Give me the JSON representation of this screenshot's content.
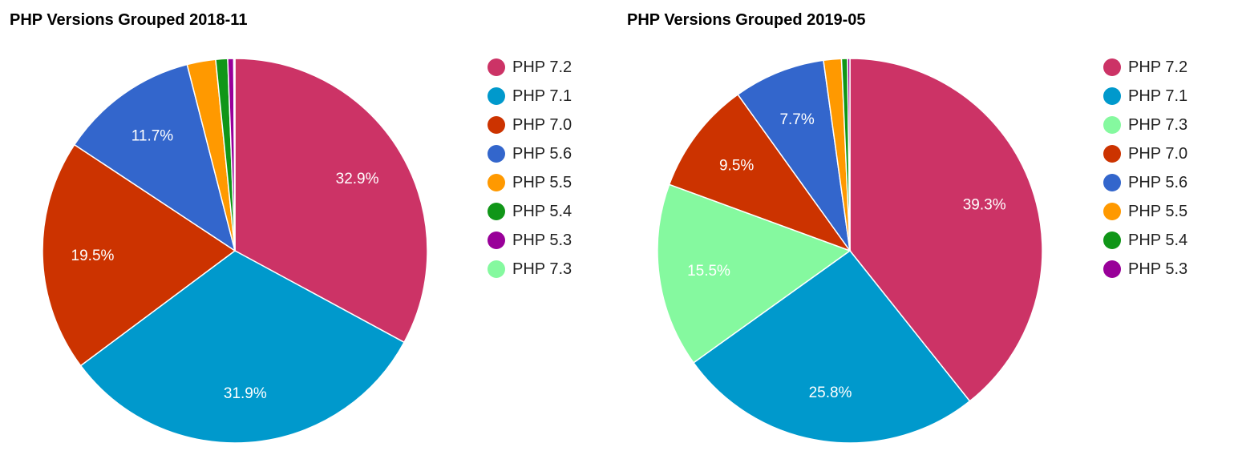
{
  "chart_data": [
    {
      "type": "pie",
      "title": "PHP Versions Grouped 2018-11",
      "legend_position": "right",
      "slices": [
        {
          "name": "PHP 7.2",
          "value": 32.9,
          "color": "#cc3366",
          "label": "32.9%"
        },
        {
          "name": "PHP 7.1",
          "value": 31.9,
          "color": "#0099cc",
          "label": "31.9%"
        },
        {
          "name": "PHP 7.0",
          "value": 19.5,
          "color": "#cc3300",
          "label": "19.5%"
        },
        {
          "name": "PHP 5.6",
          "value": 11.7,
          "color": "#3366cc",
          "label": "11.7%"
        },
        {
          "name": "PHP 5.5",
          "value": 2.4,
          "color": "#ff9900",
          "label": ""
        },
        {
          "name": "PHP 5.4",
          "value": 1.0,
          "color": "#109618",
          "label": ""
        },
        {
          "name": "PHP 5.3",
          "value": 0.5,
          "color": "#990099",
          "label": ""
        },
        {
          "name": "PHP 7.3",
          "value": 0.1,
          "color": "#85f99f",
          "label": ""
        }
      ],
      "legend": [
        "PHP 7.2",
        "PHP 7.1",
        "PHP 7.0",
        "PHP 5.6",
        "PHP 5.5",
        "PHP 5.4",
        "PHP 5.3",
        "PHP 7.3"
      ]
    },
    {
      "type": "pie",
      "title": "PHP Versions Grouped 2019-05",
      "legend_position": "right",
      "slices": [
        {
          "name": "PHP 7.2",
          "value": 39.3,
          "color": "#cc3366",
          "label": "39.3%"
        },
        {
          "name": "PHP 7.1",
          "value": 25.8,
          "color": "#0099cc",
          "label": "25.8%"
        },
        {
          "name": "PHP 7.3",
          "value": 15.5,
          "color": "#85f99f",
          "label": "15.5%"
        },
        {
          "name": "PHP 7.0",
          "value": 9.5,
          "color": "#cc3300",
          "label": "9.5%"
        },
        {
          "name": "PHP 5.6",
          "value": 7.7,
          "color": "#3366cc",
          "label": "7.7%"
        },
        {
          "name": "PHP 5.5",
          "value": 1.5,
          "color": "#ff9900",
          "label": ""
        },
        {
          "name": "PHP 5.4",
          "value": 0.5,
          "color": "#109618",
          "label": ""
        },
        {
          "name": "PHP 5.3",
          "value": 0.2,
          "color": "#990099",
          "label": ""
        }
      ],
      "legend": [
        "PHP 7.2",
        "PHP 7.1",
        "PHP 7.3",
        "PHP 7.0",
        "PHP 5.6",
        "PHP 5.5",
        "PHP 5.4",
        "PHP 5.3"
      ]
    }
  ]
}
